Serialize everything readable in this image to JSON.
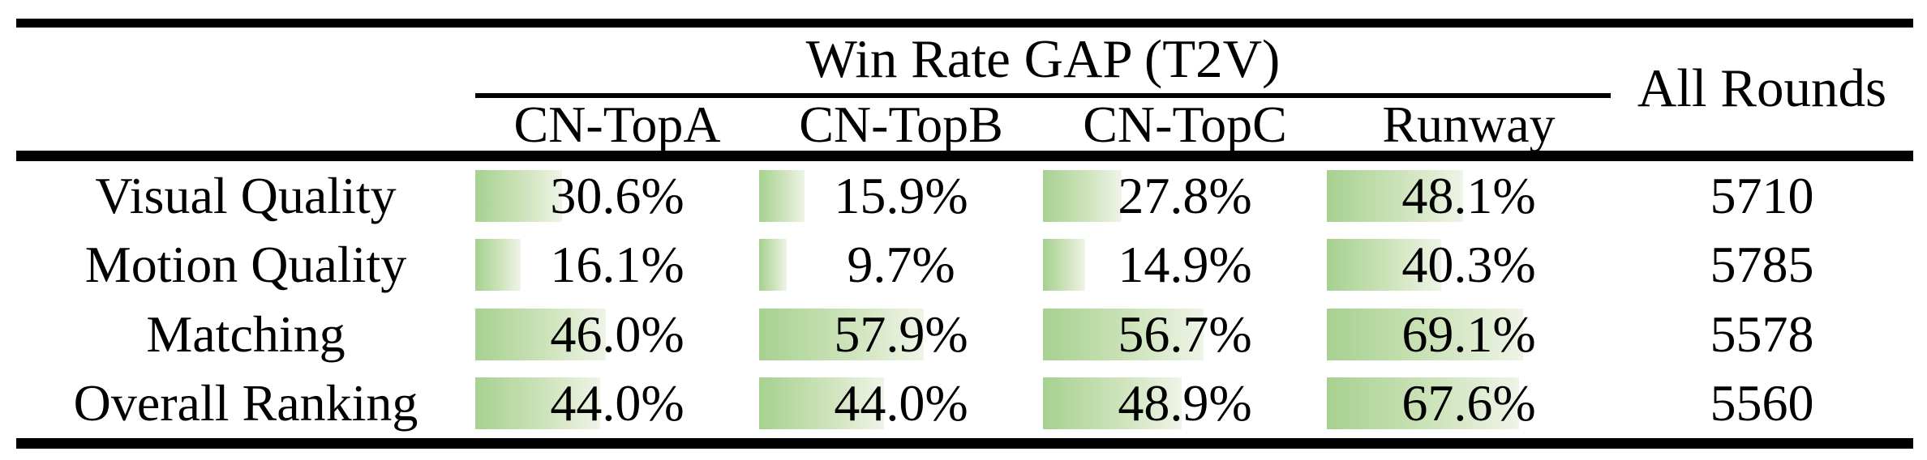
{
  "table": {
    "group_header": "Win Rate GAP (T2V)",
    "all_rounds_header": "All Rounds",
    "columns": [
      "CN-TopA",
      "CN-TopB",
      "CN-TopC",
      "Runway"
    ],
    "rows": [
      {
        "label": "Visual Quality",
        "cells": [
          {
            "text": "30.6%",
            "pct": 30.6
          },
          {
            "text": "15.9%",
            "pct": 15.9
          },
          {
            "text": "27.8%",
            "pct": 27.8
          },
          {
            "text": "48.1%",
            "pct": 48.1
          }
        ],
        "all_rounds": "5710"
      },
      {
        "label": "Motion Quality",
        "cells": [
          {
            "text": "16.1%",
            "pct": 16.1
          },
          {
            "text": "9.7%",
            "pct": 9.7
          },
          {
            "text": "14.9%",
            "pct": 14.9
          },
          {
            "text": "40.3%",
            "pct": 40.3
          }
        ],
        "all_rounds": "5785"
      },
      {
        "label": "Matching",
        "cells": [
          {
            "text": "46.0%",
            "pct": 46.0
          },
          {
            "text": "57.9%",
            "pct": 57.9
          },
          {
            "text": "56.7%",
            "pct": 56.7
          },
          {
            "text": "69.1%",
            "pct": 69.1
          }
        ],
        "all_rounds": "5578"
      },
      {
        "label": "Overall Ranking",
        "cells": [
          {
            "text": "44.0%",
            "pct": 44.0
          },
          {
            "text": "44.0%",
            "pct": 44.0
          },
          {
            "text": "48.9%",
            "pct": 48.9
          },
          {
            "text": "67.6%",
            "pct": 67.6
          }
        ],
        "all_rounds": "5560"
      }
    ],
    "colors": {
      "bar_gradient_start": "#a6d190",
      "bar_gradient_end": "#eff4e7",
      "rule": "#000000",
      "text": "#000000",
      "background": "#ffffff"
    }
  },
  "chart_data": {
    "type": "table",
    "title": "Win Rate GAP (T2V)",
    "categories": [
      "Visual Quality",
      "Motion Quality",
      "Matching",
      "Overall Ranking"
    ],
    "series": [
      {
        "name": "CN-TopA",
        "values": [
          30.6,
          16.1,
          46.0,
          44.0
        ],
        "unit": "%"
      },
      {
        "name": "CN-TopB",
        "values": [
          15.9,
          9.7,
          57.9,
          44.0
        ],
        "unit": "%"
      },
      {
        "name": "CN-TopC",
        "values": [
          27.8,
          14.9,
          56.7,
          48.9
        ],
        "unit": "%"
      },
      {
        "name": "Runway",
        "values": [
          48.1,
          40.3,
          69.1,
          67.6
        ],
        "unit": "%"
      },
      {
        "name": "All Rounds",
        "values": [
          5710,
          5785,
          5578,
          5560
        ],
        "unit": "count"
      }
    ],
    "layout_hints": {
      "data_bars": "green gradient bar behind each percentage, width proportional to value (100% = full cell width)",
      "bar_range": [
        0,
        100
      ],
      "style": "booktabs three-rule academic table, no vertical rules"
    }
  }
}
